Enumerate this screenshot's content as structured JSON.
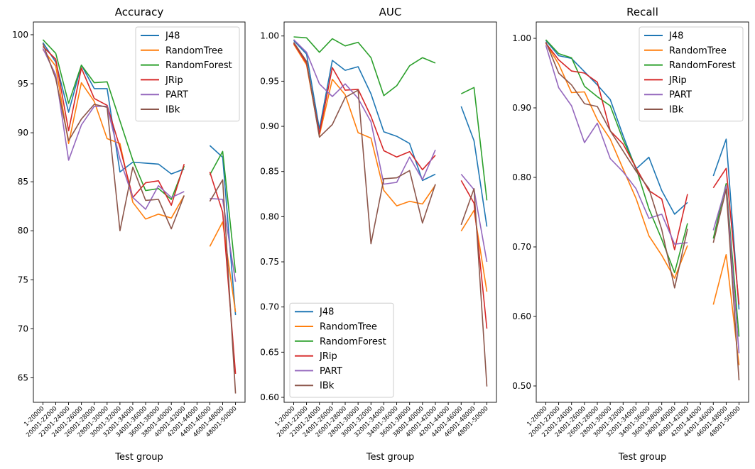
{
  "chart_data": [
    {
      "type": "line",
      "title": "Accuracy",
      "xlabel": "Test group",
      "ylabel": "",
      "ylim": [
        62.5,
        101.3
      ],
      "yticks": [
        65,
        70,
        75,
        80,
        85,
        90,
        95,
        100
      ],
      "legend": "top-right",
      "categories": [
        "1-20000",
        "20001-22000",
        "22001-24000",
        "24001-26000",
        "26001-28000",
        "28001-30000",
        "30001-32000",
        "32001-34000",
        "34001-36000",
        "36001-38000",
        "38001-40000",
        "40001-42000",
        "42001-44000",
        "44001-46000",
        "46001-48000",
        "48001-50000"
      ],
      "series": [
        {
          "name": "J48",
          "color": "#1f77b4",
          "values": [
            99.2,
            97.2,
            92.1,
            96.9,
            94.5,
            94.5,
            86.0,
            87.0,
            86.9,
            86.8,
            85.8,
            86.3,
            null,
            88.7,
            87.5,
            71.4
          ]
        },
        {
          "name": "RandomTree",
          "color": "#ff7f0e",
          "values": [
            98.5,
            96.8,
            88.9,
            95.1,
            93.2,
            89.4,
            88.9,
            82.9,
            81.2,
            81.7,
            81.3,
            83.6,
            null,
            78.4,
            80.9,
            71.7
          ]
        },
        {
          "name": "RandomForest",
          "color": "#2ca02c",
          "values": [
            99.5,
            98.1,
            93.0,
            96.9,
            95.1,
            95.2,
            91.2,
            87.2,
            84.1,
            84.3,
            83.2,
            86.6,
            null,
            85.7,
            88.1,
            75.7
          ]
        },
        {
          "name": "JRip",
          "color": "#d62728",
          "values": [
            98.8,
            97.5,
            90.2,
            96.6,
            93.5,
            92.8,
            88.5,
            83.4,
            84.9,
            85.1,
            82.6,
            86.8,
            null,
            86.0,
            81.9,
            65.4
          ]
        },
        {
          "name": "PART",
          "color": "#9467bd",
          "values": [
            98.6,
            95.9,
            87.2,
            90.8,
            92.7,
            92.7,
            87.3,
            83.4,
            82.2,
            84.6,
            83.4,
            84.0,
            null,
            83.3,
            83.2,
            74.8
          ]
        },
        {
          "name": "IBk",
          "color": "#8c564b",
          "values": [
            99.1,
            95.5,
            89.2,
            91.4,
            92.9,
            92.6,
            80.0,
            86.5,
            83.1,
            83.2,
            80.2,
            83.6,
            null,
            83.0,
            85.2,
            63.4
          ]
        }
      ]
    },
    {
      "type": "line",
      "title": "AUC",
      "xlabel": "Test group",
      "ylabel": "",
      "ylim": [
        0.5945,
        1.0155
      ],
      "yticks": [
        0.6,
        0.65,
        0.7,
        0.75,
        0.8,
        0.85,
        0.9,
        0.95,
        1.0
      ],
      "legend": "bottom-left",
      "categories": [
        "1-20000",
        "20001-22000",
        "22001-24000",
        "24001-26000",
        "26001-28000",
        "28001-30000",
        "30001-32000",
        "32001-34000",
        "34001-36000",
        "36001-38000",
        "38001-40000",
        "40001-42000",
        "42001-44000",
        "44001-46000",
        "46001-48000",
        "48001-50000"
      ],
      "series": [
        {
          "name": "J48",
          "color": "#1f77b4",
          "values": [
            0.995,
            0.98,
            0.897,
            0.973,
            0.962,
            0.966,
            0.936,
            0.894,
            0.889,
            0.881,
            0.84,
            0.847,
            null,
            0.922,
            0.884,
            0.789
          ]
        },
        {
          "name": "RandomTree",
          "color": "#ff7f0e",
          "values": [
            0.991,
            0.968,
            0.89,
            0.952,
            0.935,
            0.893,
            0.887,
            0.829,
            0.812,
            0.817,
            0.814,
            0.835,
            null,
            0.784,
            0.807,
            0.717
          ]
        },
        {
          "name": "RandomForest",
          "color": "#2ca02c",
          "values": [
            0.999,
            0.998,
            0.982,
            0.997,
            0.989,
            0.993,
            0.976,
            0.934,
            0.945,
            0.967,
            0.976,
            0.97,
            null,
            0.936,
            0.943,
            0.818
          ]
        },
        {
          "name": "JRip",
          "color": "#d62728",
          "values": [
            0.992,
            0.97,
            0.892,
            0.965,
            0.94,
            0.941,
            0.911,
            0.873,
            0.866,
            0.872,
            0.852,
            0.868,
            null,
            0.84,
            0.815,
            0.676
          ]
        },
        {
          "name": "PART",
          "color": "#9467bd",
          "values": [
            0.996,
            0.982,
            0.947,
            0.933,
            0.947,
            0.931,
            0.905,
            0.836,
            0.838,
            0.866,
            0.841,
            0.874,
            null,
            0.847,
            0.83,
            0.75
          ]
        },
        {
          "name": "IBk",
          "color": "#8c564b",
          "values": [
            0.993,
            0.972,
            0.888,
            0.902,
            0.932,
            0.94,
            0.77,
            0.842,
            0.843,
            0.851,
            0.793,
            0.836,
            null,
            0.791,
            0.831,
            0.612
          ]
        }
      ]
    },
    {
      "type": "line",
      "title": "Recall",
      "xlabel": "Test group",
      "ylabel": "",
      "ylim": [
        0.4765,
        1.0235
      ],
      "yticks": [
        0.5,
        0.6,
        0.7,
        0.8,
        0.9,
        1.0
      ],
      "legend": "top-right",
      "categories": [
        "1-20000",
        "20001-22000",
        "22001-24000",
        "24001-26000",
        "26001-28000",
        "28001-30000",
        "30001-32000",
        "32001-34000",
        "34001-36000",
        "36001-38000",
        "38001-40000",
        "40001-42000",
        "42001-44000",
        "44001-46000",
        "46001-48000",
        "48001-50000"
      ],
      "series": [
        {
          "name": "J48",
          "color": "#1f77b4",
          "values": [
            0.997,
            0.975,
            0.971,
            0.952,
            0.933,
            0.912,
            0.86,
            0.812,
            0.829,
            0.781,
            0.747,
            0.764,
            null,
            0.802,
            0.855,
            0.61
          ]
        },
        {
          "name": "RandomTree",
          "color": "#ff7f0e",
          "values": [
            0.993,
            0.963,
            0.922,
            0.923,
            0.883,
            0.855,
            0.812,
            0.77,
            0.716,
            0.688,
            0.655,
            0.702,
            null,
            0.617,
            0.689,
            0.53
          ]
        },
        {
          "name": "RandomForest",
          "color": "#2ca02c",
          "values": [
            0.998,
            0.978,
            0.972,
            0.931,
            0.916,
            0.903,
            0.854,
            0.814,
            0.755,
            0.711,
            0.663,
            0.734,
            null,
            0.712,
            0.791,
            0.571
          ]
        },
        {
          "name": "JRip",
          "color": "#d62728",
          "values": [
            0.993,
            0.969,
            0.953,
            0.95,
            0.937,
            0.867,
            0.848,
            0.814,
            0.781,
            0.769,
            0.696,
            0.776,
            null,
            0.785,
            0.813,
            0.617
          ]
        },
        {
          "name": "PART",
          "color": "#9467bd",
          "values": [
            0.99,
            0.929,
            0.903,
            0.85,
            0.878,
            0.827,
            0.808,
            0.784,
            0.741,
            0.747,
            0.704,
            0.706,
            null,
            0.724,
            0.788,
            0.547
          ]
        },
        {
          "name": "IBk",
          "color": "#8c564b",
          "values": [
            0.995,
            0.95,
            0.933,
            0.906,
            0.902,
            0.867,
            0.838,
            0.809,
            0.784,
            0.725,
            0.641,
            0.726,
            null,
            0.706,
            0.783,
            0.508
          ]
        }
      ]
    }
  ]
}
